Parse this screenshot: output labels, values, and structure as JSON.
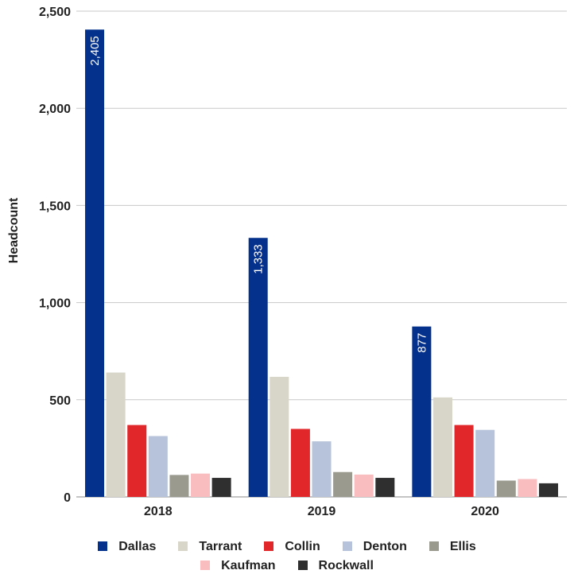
{
  "chart_data": {
    "type": "bar",
    "categories": [
      "2018",
      "2019",
      "2020"
    ],
    "ylabel": "Headcount",
    "xlabel": "",
    "ylim": [
      0,
      2500
    ],
    "yticks": [
      0,
      500,
      1000,
      1500,
      2000,
      2500
    ],
    "ytick_labels": [
      "0",
      "500",
      "1,000",
      "1,500",
      "2,000",
      "2,500"
    ],
    "grid": true,
    "legend_position": "bottom",
    "series": [
      {
        "name": "Dallas",
        "color": "#04318c",
        "values": [
          2405,
          1333,
          877
        ],
        "data_labels": [
          "2,405",
          "1,333",
          "877"
        ]
      },
      {
        "name": "Tarrant",
        "color": "#d8d6c9",
        "values": [
          640,
          618,
          512
        ]
      },
      {
        "name": "Collin",
        "color": "#e2272b",
        "values": [
          370,
          350,
          370
        ]
      },
      {
        "name": "Denton",
        "color": "#b7c3da",
        "values": [
          313,
          286,
          345
        ]
      },
      {
        "name": "Ellis",
        "color": "#9a9a8f",
        "values": [
          113,
          128,
          84
        ]
      },
      {
        "name": "Kaufman",
        "color": "#f9bcbf",
        "values": [
          120,
          115,
          92
        ]
      },
      {
        "name": "Rockwall",
        "color": "#2f2f2f",
        "values": [
          98,
          98,
          70
        ]
      }
    ]
  }
}
